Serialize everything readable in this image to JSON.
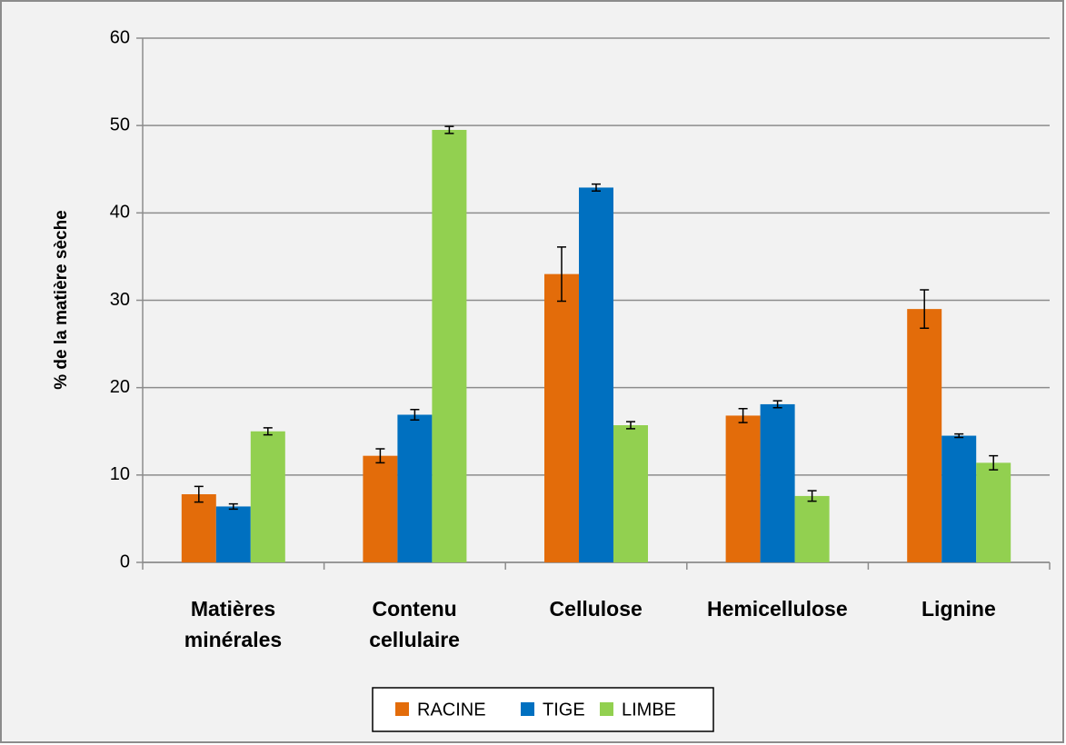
{
  "chart_data": {
    "type": "bar",
    "y_label": "% de la matière sèche",
    "categories": [
      "Matières minérales",
      "Contenu cellulaire",
      "Cellulose",
      "Hemicellulose",
      "Lignine"
    ],
    "series": [
      {
        "name": "RACINE",
        "color": "#e36c0a",
        "values": [
          7.8,
          12.2,
          33.0,
          16.8,
          29.0
        ],
        "errors": [
          0.9,
          0.8,
          3.1,
          0.8,
          2.2
        ]
      },
      {
        "name": "TIGE",
        "color": "#0070c0",
        "values": [
          6.4,
          16.9,
          42.9,
          18.1,
          14.5
        ],
        "errors": [
          0.3,
          0.6,
          0.4,
          0.4,
          0.2
        ]
      },
      {
        "name": "LIMBE",
        "color": "#92d050",
        "values": [
          15.0,
          49.5,
          15.7,
          7.6,
          11.4
        ],
        "errors": [
          0.4,
          0.4,
          0.4,
          0.6,
          0.8
        ]
      }
    ],
    "ylim": [
      0,
      60
    ],
    "yticks": [
      0,
      10,
      20,
      30,
      40,
      50,
      60
    ],
    "grid": true,
    "legend": "bottom"
  }
}
